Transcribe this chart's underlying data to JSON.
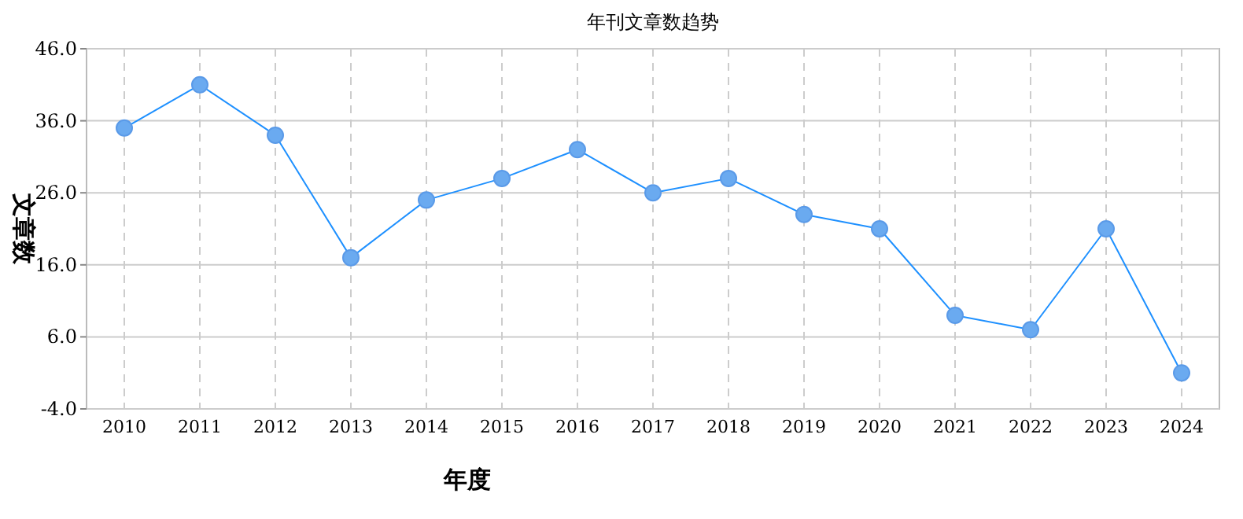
{
  "chart_data": {
    "type": "line",
    "title": "年刊文章数趋势",
    "xlabel": "年度",
    "ylabel": "文章数",
    "categories": [
      "2010",
      "2011",
      "2012",
      "2013",
      "2014",
      "2015",
      "2016",
      "2017",
      "2018",
      "2019",
      "2020",
      "2021",
      "2022",
      "2023",
      "2024"
    ],
    "series": [
      {
        "color": "#1e90ff",
        "values": [
          35,
          41,
          34,
          17,
          25,
          28,
          32,
          26,
          28,
          23,
          21,
          9,
          7,
          21,
          1
        ]
      }
    ],
    "ylim": [
      -4,
      46
    ],
    "yticks": [
      {
        "value": -4,
        "label": "-4.0"
      },
      {
        "value": 6,
        "label": "6.0"
      },
      {
        "value": 16,
        "label": "16.0"
      },
      {
        "value": 26,
        "label": "26.0"
      },
      {
        "value": 36,
        "label": "36.0"
      },
      {
        "value": 46,
        "label": "46.0"
      }
    ],
    "grid": true,
    "marker": "circle",
    "line_style": "solid"
  }
}
